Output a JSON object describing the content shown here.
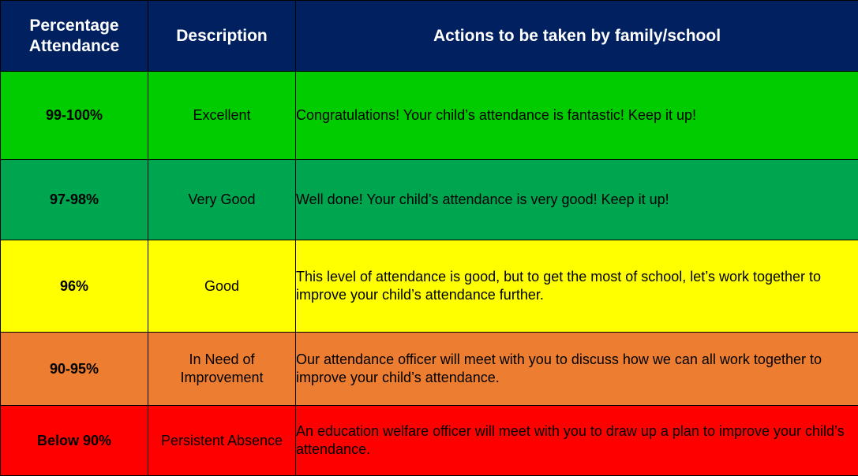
{
  "table": {
    "headers": {
      "percentage": "Percentage Attendance",
      "description": "Description",
      "actions": "Actions to be taken by family/school"
    },
    "header_color": "#002060",
    "rows": [
      {
        "percentage": "99-100%",
        "description": "Excellent",
        "action": "Congratulations!  Your child’s attendance is fantastic! Keep it up!",
        "color": "#00cc00"
      },
      {
        "percentage": "97-98%",
        "description": "Very Good",
        "action": "Well done! Your child’s attendance is very good! Keep it up!",
        "color": "#00a550"
      },
      {
        "percentage": "96%",
        "description": "Good",
        "action": "This level of attendance is good, but to get the most of school, let’s work together to improve your child’s attendance further.",
        "color": "#ffff00"
      },
      {
        "percentage": "90-95%",
        "description": "In Need of Improvement",
        "action": "Our attendance officer will meet with you to discuss how we can all work together to improve your child’s attendance.",
        "color": "#ed7d31"
      },
      {
        "percentage": "Below 90%",
        "description": "Persistent Absence",
        "action": "An education welfare officer will meet with you to draw up a plan to improve your child’s attendance.",
        "color": "#ff0000"
      }
    ]
  }
}
